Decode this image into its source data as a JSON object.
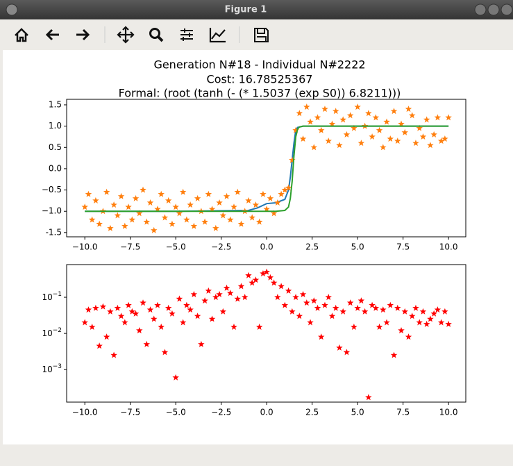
{
  "window": {
    "title": "Figure 1"
  },
  "chart_data": [
    {
      "type": "scatter",
      "title": "Generation N#18 - Individual N#2222",
      "subtitle": [
        "Cost: 16.78525367",
        "Formal: (root (tanh (- (* 1.5037 (exp S0)) 6.8211)))"
      ],
      "xlim": [
        -11,
        10.95
      ],
      "ylim": [
        -1.6,
        1.63
      ],
      "xticks": [
        {
          "value": -10,
          "label": "−10.0"
        },
        {
          "value": -7.5,
          "label": "−7.5"
        },
        {
          "value": -5,
          "label": "−5.0"
        },
        {
          "value": -2.5,
          "label": "−2.5"
        },
        {
          "value": 0,
          "label": "0.0"
        },
        2.5,
        {
          "value": 5,
          "label": "5.0"
        },
        7.5,
        {
          "value": 10,
          "label": "10.0"
        }
      ],
      "yticks": [
        -1.5,
        {
          "value": -1,
          "label": "−1.0"
        },
        {
          "value": -0.5,
          "label": "−0.5"
        },
        {
          "value": 0,
          "label": "0.0"
        },
        0.5,
        {
          "value": 1,
          "label": "1.0"
        },
        1.5
      ],
      "series": [
        {
          "type": "line",
          "color": "#1f77b4",
          "x": [
            -10,
            -5,
            -1,
            -0.5,
            0,
            0.5,
            1,
            1.2,
            1.3,
            1.4,
            1.5,
            1.6,
            1.7,
            2,
            5,
            10
          ],
          "values": [
            -1,
            -1,
            -0.98,
            -0.92,
            -0.82,
            -0.8,
            -0.72,
            -0.5,
            -0.2,
            0.2,
            0.6,
            0.9,
            0.97,
            1,
            1,
            1
          ]
        },
        {
          "type": "scatter",
          "marker": "star",
          "color": "#ff7f0e",
          "x": [
            -10,
            -9.8,
            -9.6,
            -9.4,
            -9.2,
            -9,
            -8.8,
            -8.6,
            -8.4,
            -8.2,
            -8,
            -7.8,
            -7.6,
            -7.4,
            -7.2,
            -7,
            -6.8,
            -6.6,
            -6.4,
            -6.2,
            -6,
            -5.8,
            -5.6,
            -5.4,
            -5.2,
            -5,
            -4.8,
            -4.6,
            -4.4,
            -4.2,
            -4,
            -3.8,
            -3.6,
            -3.4,
            -3.2,
            -3,
            -2.8,
            -2.6,
            -2.4,
            -2.2,
            -2,
            -1.8,
            -1.6,
            -1.4,
            -1.2,
            -1,
            -0.8,
            -0.6,
            -0.4,
            -0.2,
            0,
            0.2,
            0.4,
            0.6,
            0.8,
            1,
            1.2,
            1.4,
            1.6,
            1.8,
            2,
            2.2,
            2.4,
            2.6,
            2.8,
            3,
            3.2,
            3.4,
            3.6,
            3.8,
            4,
            4.2,
            4.4,
            4.6,
            4.8,
            5,
            5.2,
            5.4,
            5.6,
            5.8,
            6,
            6.2,
            6.4,
            6.6,
            6.8,
            7,
            7.2,
            7.4,
            7.6,
            7.8,
            8,
            8.2,
            8.4,
            8.6,
            8.8,
            9,
            9.2,
            9.4,
            9.6,
            9.8,
            10
          ],
          "values": [
            -0.9,
            -0.6,
            -1.2,
            -0.75,
            -1.3,
            -1.0,
            -0.55,
            -1.4,
            -0.85,
            -1.1,
            -0.65,
            -1.35,
            -0.9,
            -1.2,
            -0.7,
            -1.05,
            -0.5,
            -1.25,
            -0.8,
            -1.45,
            -0.95,
            -0.6,
            -1.15,
            -0.75,
            -1.3,
            -0.9,
            -1.05,
            -0.55,
            -1.2,
            -0.85,
            -1.35,
            -0.7,
            -1.0,
            -1.25,
            -0.6,
            -0.95,
            -1.4,
            -0.8,
            -1.1,
            -0.65,
            -1.2,
            -0.9,
            -0.55,
            -1.3,
            -1.0,
            -0.75,
            -1.15,
            -0.85,
            -1.25,
            -0.6,
            -0.95,
            -0.7,
            -1.05,
            -0.8,
            -0.6,
            -0.5,
            -0.45,
            0.2,
            0.9,
            1.3,
            0.7,
            1.45,
            1.1,
            0.5,
            1.2,
            0.9,
            1.4,
            0.65,
            1.05,
            1.35,
            0.55,
            1.15,
            0.8,
            1.25,
            0.95,
            1.45,
            0.6,
            1.0,
            1.3,
            0.75,
            1.2,
            0.9,
            0.5,
            1.1,
            0.7,
            1.35,
            0.65,
            1.05,
            0.85,
            1.4,
            1.25,
            0.6,
            0.95,
            0.75,
            1.15,
            0.55,
            0.8,
            1.2,
            0.65,
            0.7,
            1.2
          ]
        },
        {
          "type": "line",
          "color": "#2ca02c",
          "x": [
            -10,
            -5,
            0,
            0.5,
            1,
            1.2,
            1.3,
            1.4,
            1.5,
            1.6,
            1.7,
            1.8,
            2,
            5,
            10
          ],
          "values": [
            -1,
            -1,
            -1,
            -1,
            -0.98,
            -0.9,
            -0.7,
            -0.3,
            0.3,
            0.75,
            0.93,
            0.98,
            1,
            1,
            1
          ]
        }
      ]
    },
    {
      "type": "scatter",
      "log_y": true,
      "xlim": [
        -11,
        10.95
      ],
      "ylim": [
        0.000126,
        0.8
      ],
      "xticks": [
        {
          "value": -10,
          "label": "−10.0"
        },
        {
          "value": -7.5,
          "label": "−7.5"
        },
        {
          "value": -5,
          "label": "−5.0"
        },
        {
          "value": -2.5,
          "label": "−2.5"
        },
        {
          "value": 0,
          "label": "0.0"
        },
        2.5,
        {
          "value": 5,
          "label": "5.0"
        },
        7.5,
        {
          "value": 10,
          "label": "10.0"
        }
      ],
      "yticks": [
        {
          "value": 0.001,
          "label": "10−3"
        },
        {
          "value": 0.01,
          "label": "10−2"
        },
        {
          "value": 0.1,
          "label": "10−1"
        }
      ],
      "series": [
        {
          "type": "scatter",
          "marker": "star",
          "color": "#ff0000",
          "x": [
            -10,
            -9.8,
            -9.6,
            -9.4,
            -9.2,
            -9,
            -8.8,
            -8.6,
            -8.4,
            -8.2,
            -8,
            -7.8,
            -7.6,
            -7.4,
            -7.2,
            -7,
            -6.8,
            -6.6,
            -6.4,
            -6.2,
            -6,
            -5.8,
            -5.6,
            -5.4,
            -5.2,
            -5,
            -4.8,
            -4.6,
            -4.4,
            -4.2,
            -4,
            -3.8,
            -3.6,
            -3.4,
            -3.2,
            -3,
            -2.8,
            -2.6,
            -2.4,
            -2.2,
            -2,
            -1.8,
            -1.6,
            -1.4,
            -1.2,
            -1,
            -0.8,
            -0.6,
            -0.4,
            -0.2,
            0,
            0.2,
            0.4,
            0.6,
            0.8,
            1,
            1.2,
            1.4,
            1.6,
            1.8,
            2,
            2.2,
            2.4,
            2.6,
            2.8,
            3,
            3.2,
            3.4,
            3.6,
            3.8,
            4,
            4.2,
            4.4,
            4.6,
            4.8,
            5,
            5.2,
            5.4,
            5.6,
            5.8,
            6,
            6.2,
            6.4,
            6.6,
            6.8,
            7,
            7.2,
            7.4,
            7.6,
            7.8,
            8,
            8.2,
            8.4,
            8.6,
            8.8,
            9,
            9.2,
            9.4,
            9.6,
            9.8,
            10
          ],
          "values": [
            0.02,
            0.045,
            0.015,
            0.05,
            0.0045,
            0.055,
            0.008,
            0.04,
            0.0025,
            0.05,
            0.03,
            0.02,
            0.06,
            0.04,
            0.035,
            0.012,
            0.07,
            0.005,
            0.045,
            0.025,
            0.06,
            0.015,
            0.003,
            0.05,
            0.035,
            0.0006,
            0.09,
            0.02,
            0.06,
            0.045,
            0.12,
            0.03,
            0.005,
            0.08,
            0.15,
            0.025,
            0.1,
            0.12,
            0.04,
            0.18,
            0.13,
            0.015,
            0.09,
            0.2,
            0.1,
            0.4,
            0.25,
            0.3,
            0.015,
            0.45,
            0.5,
            0.35,
            0.25,
            0.1,
            0.2,
            0.06,
            0.15,
            0.04,
            0.1,
            0.03,
            0.12,
            0.07,
            0.02,
            0.08,
            0.05,
            0.008,
            0.06,
            0.1,
            0.03,
            0.05,
            0.004,
            0.04,
            0.003,
            0.07,
            0.015,
            0.05,
            0.08,
            0.04,
            0.00017,
            0.06,
            0.05,
            0.015,
            0.045,
            0.02,
            0.06,
            0.0025,
            0.05,
            0.012,
            0.04,
            0.008,
            0.03,
            0.05,
            0.02,
            0.04,
            0.018,
            0.025,
            0.035,
            0.045,
            0.02,
            0.04,
            0.018
          ]
        }
      ]
    }
  ]
}
